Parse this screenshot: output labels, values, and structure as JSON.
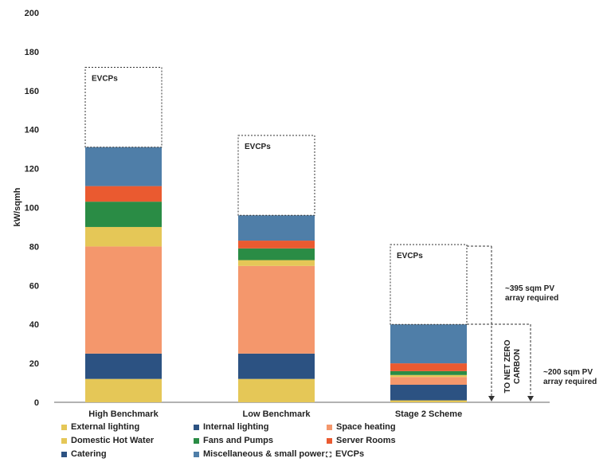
{
  "chart_data": {
    "type": "bar",
    "stacked": true,
    "categories": [
      "High Benchmark",
      "Low Benchmark",
      "Stage 2 Scheme"
    ],
    "ylabel": "kW/sqmh",
    "xlabel": "",
    "ylim": [
      0,
      200
    ],
    "yticks": [
      0,
      20,
      40,
      60,
      80,
      100,
      120,
      140,
      160,
      180,
      200
    ],
    "grid": false,
    "legend_position": "bottom",
    "series": [
      {
        "name": "External lighting",
        "color": "#E5C757",
        "values": [
          12,
          12,
          1
        ]
      },
      {
        "name": "Internal lighting",
        "color": "#2C5282",
        "values": [
          13,
          13,
          8
        ]
      },
      {
        "name": "Space heating",
        "color": "#F4976C",
        "values": [
          55,
          45,
          4
        ]
      },
      {
        "name": "Domestic Hot Water",
        "color": "#E5C757",
        "values": [
          10,
          3,
          1
        ]
      },
      {
        "name": "Fans and Pumps",
        "color": "#2A8C45",
        "values": [
          13,
          6,
          2
        ]
      },
      {
        "name": "Server Rooms",
        "color": "#EA5A30",
        "values": [
          8,
          4,
          4
        ]
      },
      {
        "name": "Catering",
        "color": "#2C5282",
        "values": [
          0,
          0,
          0
        ]
      },
      {
        "name": "Miscellaneous & small power",
        "color": "#4F7EA8",
        "values": [
          20,
          13,
          20
        ]
      },
      {
        "name": "EVCPs",
        "color": "none",
        "dashed": true,
        "values": [
          41,
          41,
          41
        ]
      }
    ],
    "bar_labels": [
      "EVCPs",
      "EVCPs",
      "EVCPs"
    ],
    "annotations": {
      "pv_upper": [
        "~395 sqm PV",
        "array required"
      ],
      "pv_lower": [
        "~200 sqm PV",
        "array required"
      ],
      "net_zero": [
        "TO NET ZERO",
        "CARBON"
      ]
    }
  },
  "legend": [
    {
      "label": "External lighting",
      "color": "#E5C757",
      "dashed": false
    },
    {
      "label": "Internal lighting",
      "color": "#2C5282",
      "dashed": false
    },
    {
      "label": "Space heating",
      "color": "#F4976C",
      "dashed": false
    },
    {
      "label": "Domestic Hot Water",
      "color": "#E5C757",
      "dashed": false
    },
    {
      "label": "Fans and Pumps",
      "color": "#2A8C45",
      "dashed": false
    },
    {
      "label": "Server Rooms",
      "color": "#EA5A30",
      "dashed": false
    },
    {
      "label": "Catering",
      "color": "#2C5282",
      "dashed": false
    },
    {
      "label": "Miscellaneous & small power",
      "color": "#4F7EA8",
      "dashed": false
    },
    {
      "label": "EVCPs",
      "color": "none",
      "dashed": true
    }
  ]
}
